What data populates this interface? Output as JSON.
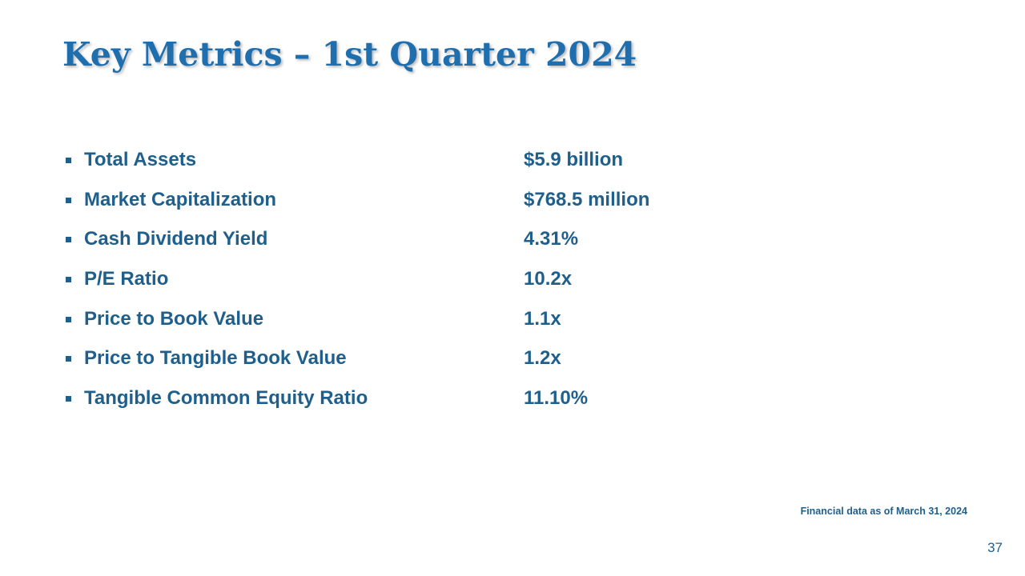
{
  "slide": {
    "title": "Key Metrics – 1st Quarter 2024",
    "footnote": "Financial data as of March 31, 2024",
    "page_number": "37"
  },
  "metrics": [
    {
      "label": "Total Assets",
      "value": "$5.9 billion"
    },
    {
      "label": "Market Capitalization",
      "value": "$768.5 million"
    },
    {
      "label": "Cash Dividend Yield",
      "value": "4.31%"
    },
    {
      "label": "P/E Ratio",
      "value": "10.2x"
    },
    {
      "label": "Price to Book Value",
      "value": "1.1x"
    },
    {
      "label": "Price to Tangible Book Value",
      "value": "1.2x"
    },
    {
      "label": "Tangible Common Equity Ratio",
      "value": "11.10%"
    }
  ],
  "colors": {
    "title": "#1f6ead",
    "text": "#1f5f8b",
    "background": "#ffffff"
  },
  "icons": {
    "bullet": "square-bullet-icon"
  }
}
